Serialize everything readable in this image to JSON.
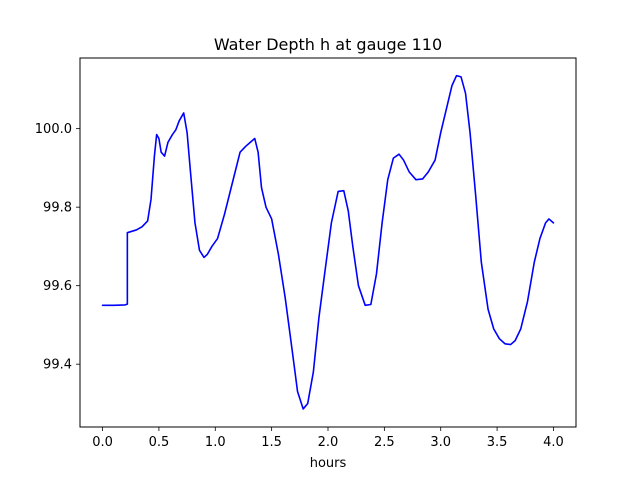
{
  "chart_data": {
    "type": "line",
    "title": "Water Depth h at gauge 110",
    "xlabel": "hours",
    "ylabel": "",
    "xlim": [
      -0.2,
      4.2
    ],
    "ylim": [
      99.24,
      100.18
    ],
    "xticks": [
      0.0,
      0.5,
      1.0,
      1.5,
      2.0,
      2.5,
      3.0,
      3.5,
      4.0
    ],
    "xtick_labels": [
      "0.0",
      "0.5",
      "1.0",
      "1.5",
      "2.0",
      "2.5",
      "3.0",
      "3.5",
      "4.0"
    ],
    "yticks": [
      99.4,
      99.6,
      99.8,
      100.0
    ],
    "ytick_labels": [
      "99.4",
      "99.6",
      "99.8",
      "100.0"
    ],
    "grid": false,
    "series": [
      {
        "color": "#0000ff",
        "x": [
          0.0,
          0.1,
          0.2,
          0.22,
          0.22,
          0.3,
          0.35,
          0.4,
          0.43,
          0.46,
          0.48,
          0.5,
          0.52,
          0.55,
          0.58,
          0.62,
          0.65,
          0.68,
          0.72,
          0.75,
          0.78,
          0.82,
          0.86,
          0.9,
          0.93,
          0.97,
          1.02,
          1.08,
          1.15,
          1.22,
          1.27,
          1.31,
          1.35,
          1.38,
          1.41,
          1.45,
          1.5,
          1.56,
          1.62,
          1.68,
          1.73,
          1.78,
          1.82,
          1.87,
          1.92,
          1.97,
          2.03,
          2.09,
          2.14,
          2.18,
          2.22,
          2.27,
          2.33,
          2.38,
          2.43,
          2.48,
          2.53,
          2.58,
          2.63,
          2.67,
          2.72,
          2.78,
          2.84,
          2.89,
          2.95,
          3.0,
          3.05,
          3.1,
          3.14,
          3.18,
          3.22,
          3.26,
          3.31,
          3.36,
          3.42,
          3.47,
          3.52,
          3.57,
          3.62,
          3.66,
          3.71,
          3.77,
          3.83,
          3.88,
          3.93,
          3.96,
          4.0
        ],
        "y": [
          99.55,
          99.55,
          99.551,
          99.553,
          99.735,
          99.742,
          99.75,
          99.765,
          99.82,
          99.93,
          99.985,
          99.975,
          99.94,
          99.93,
          99.965,
          99.985,
          99.997,
          100.02,
          100.04,
          99.99,
          99.89,
          99.76,
          99.69,
          99.672,
          99.68,
          99.7,
          99.72,
          99.78,
          99.86,
          99.94,
          99.955,
          99.965,
          99.975,
          99.94,
          99.85,
          99.8,
          99.77,
          99.68,
          99.57,
          99.44,
          99.33,
          99.286,
          99.3,
          99.38,
          99.52,
          99.63,
          99.76,
          99.84,
          99.842,
          99.79,
          99.7,
          99.6,
          99.55,
          99.552,
          99.63,
          99.76,
          99.87,
          99.925,
          99.935,
          99.92,
          99.89,
          99.87,
          99.872,
          99.89,
          99.92,
          99.99,
          100.05,
          100.11,
          100.135,
          100.132,
          100.09,
          99.99,
          99.83,
          99.66,
          99.54,
          99.49,
          99.465,
          99.452,
          99.45,
          99.46,
          99.49,
          99.56,
          99.66,
          99.72,
          99.76,
          99.77,
          99.76
        ]
      }
    ]
  }
}
